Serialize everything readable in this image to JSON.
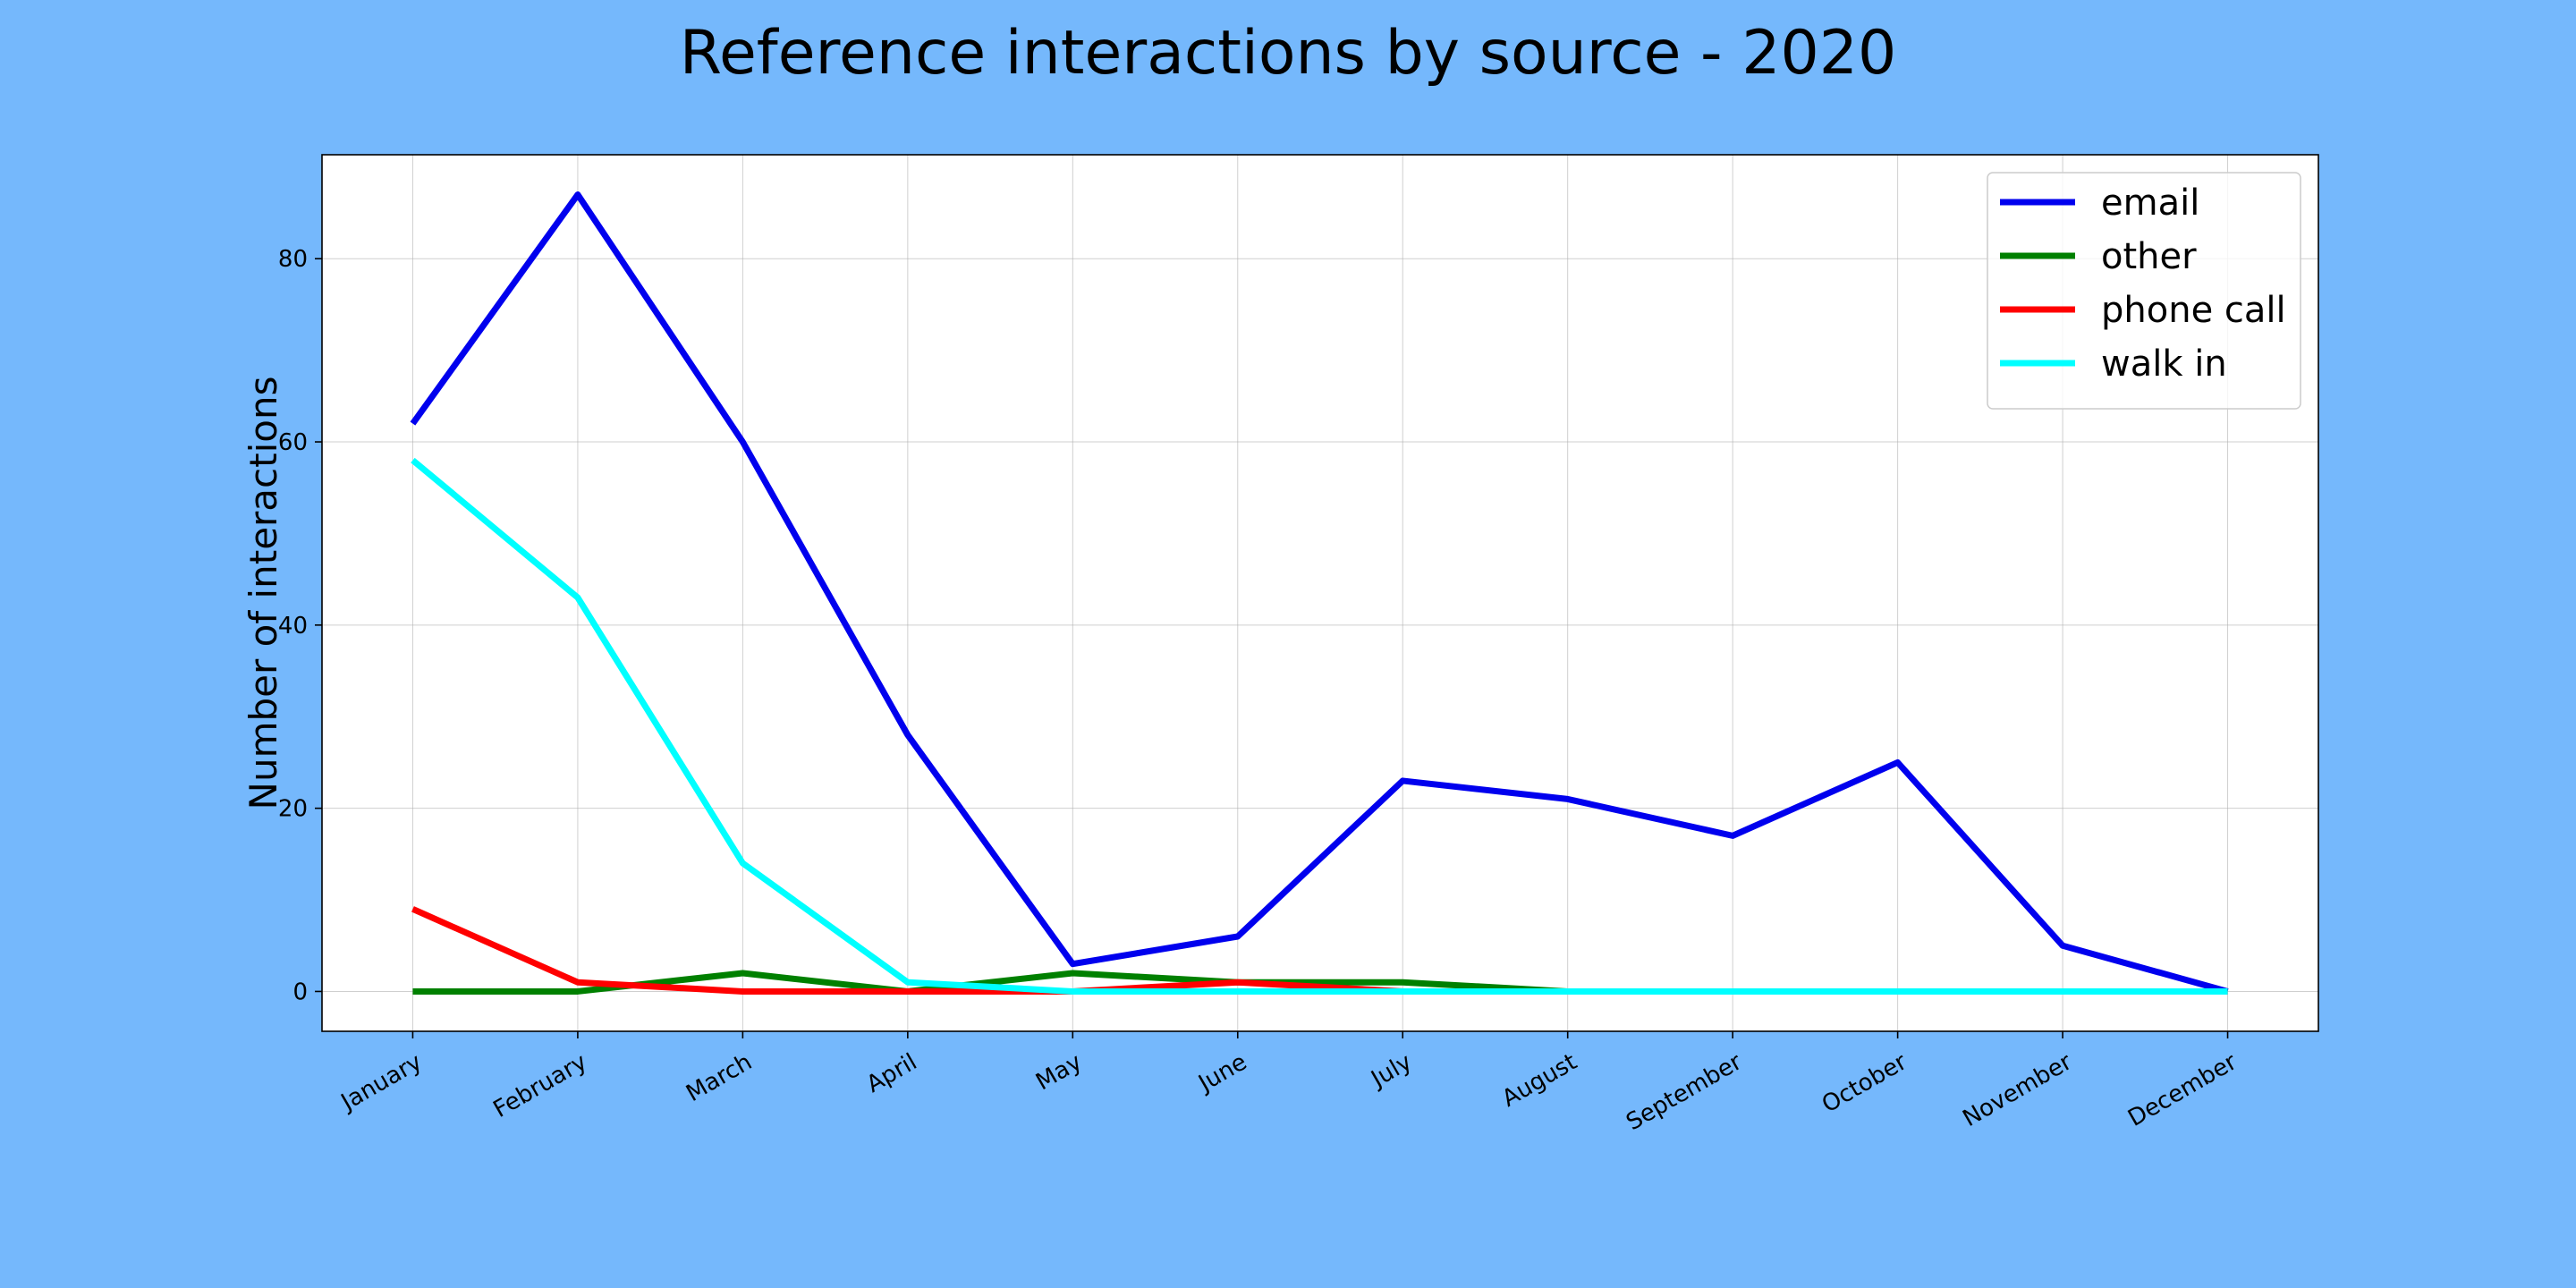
{
  "chart_data": {
    "type": "line",
    "title": "Reference interactions by source - 2020",
    "xlabel": "",
    "ylabel": "Number of interactions",
    "categories": [
      "January",
      "February",
      "March",
      "April",
      "May",
      "June",
      "July",
      "August",
      "September",
      "October",
      "November",
      "December"
    ],
    "ylim": [
      -4.35,
      91.35
    ],
    "yticks": [
      0,
      20,
      40,
      60,
      80
    ],
    "grid": true,
    "legend_position": "top-right",
    "series": [
      {
        "name": "email",
        "color": "#0000ee",
        "values": [
          62,
          87,
          60,
          28,
          3,
          6,
          23,
          21,
          17,
          25,
          5,
          0
        ]
      },
      {
        "name": "other",
        "color": "#008000",
        "values": [
          0,
          0,
          2,
          0,
          2,
          1,
          1,
          0,
          0,
          0,
          0,
          0
        ]
      },
      {
        "name": "phone call",
        "color": "#ff0000",
        "values": [
          9,
          1,
          0,
          0,
          0,
          1,
          0,
          0,
          0,
          0,
          0,
          0
        ]
      },
      {
        "name": "walk in",
        "color": "#00ffff",
        "values": [
          58,
          43,
          14,
          1,
          0,
          0,
          0,
          0,
          0,
          0,
          0,
          0
        ]
      }
    ]
  }
}
